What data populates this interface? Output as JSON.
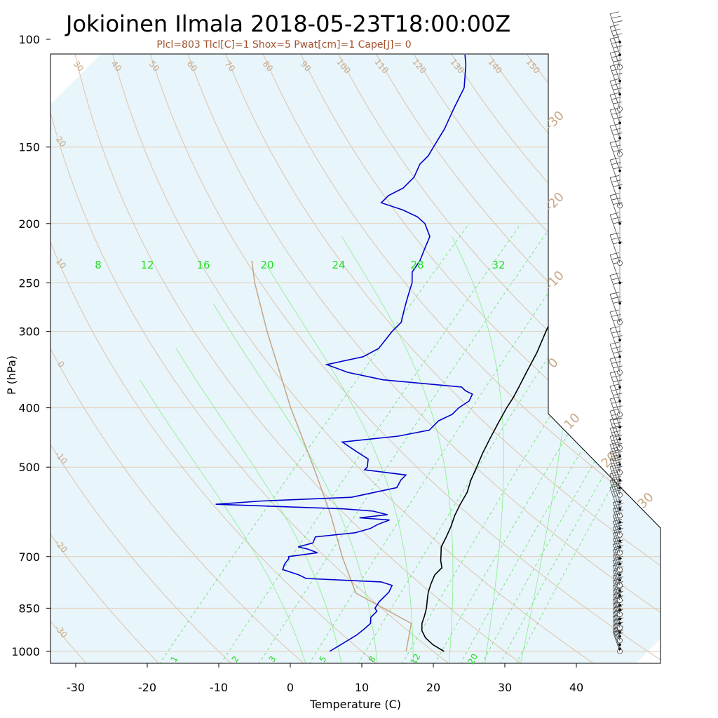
{
  "chart_data": {
    "type": "skew-t",
    "title": "Jokioinen Ilmala 2018-05-23T18:00:00Z",
    "subtitle": "Plcl=803 Tlcl[C]=1 Shox=5 Pwat[cm]=1 Cape[J]= 0",
    "xlabel": "Temperature (C)",
    "ylabel": "P (hPa)",
    "xlim": [
      -33,
      46
    ],
    "ylim": [
      1035,
      100
    ],
    "x_ticks": [
      -30,
      -20,
      -10,
      0,
      10,
      20,
      30,
      40
    ],
    "p_ticks": [
      100,
      150,
      200,
      250,
      300,
      400,
      500,
      700,
      850,
      1000
    ],
    "y_scale": "log",
    "isotherm_labels": [
      -30,
      -20,
      -10,
      0,
      10,
      20,
      30
    ],
    "isotherm_band_celsius": [
      -110,
      -100,
      -90,
      -80,
      -70,
      -60,
      -50,
      -40,
      -30,
      -20,
      -10,
      0,
      10,
      20,
      30,
      40
    ],
    "dry_adiabat_labels": [
      -30,
      -20,
      -10,
      0,
      10,
      20,
      30,
      40,
      50,
      60,
      70,
      80,
      90,
      100,
      110,
      120,
      130,
      140,
      150,
      160
    ],
    "mixing_ratio_top_labels": [
      8,
      12,
      16,
      20,
      24,
      28,
      32
    ],
    "mixing_ratio_bottom_labels": [
      1,
      2,
      3,
      5,
      8,
      12,
      20
    ],
    "temperature": {
      "name": "Temperature",
      "color": "#000000",
      "points": [
        [
          1000,
          21.5
        ],
        [
          990,
          20.5
        ],
        [
          975,
          19.0
        ],
        [
          950,
          17.0
        ],
        [
          925,
          15.5
        ],
        [
          900,
          14.5
        ],
        [
          875,
          13.8
        ],
        [
          850,
          13.0
        ],
        [
          825,
          12.0
        ],
        [
          800,
          11.0
        ],
        [
          775,
          10.2
        ],
        [
          750,
          9.5
        ],
        [
          730,
          9.5
        ],
        [
          710,
          8.3
        ],
        [
          700,
          7.8
        ],
        [
          675,
          6.5
        ],
        [
          650,
          5.8
        ],
        [
          625,
          5.0
        ],
        [
          600,
          4.0
        ],
        [
          575,
          3.2
        ],
        [
          550,
          2.5
        ],
        [
          525,
          1.3
        ],
        [
          500,
          0.3
        ],
        [
          475,
          -0.8
        ],
        [
          450,
          -1.8
        ],
        [
          425,
          -2.8
        ],
        [
          400,
          -3.8
        ],
        [
          385,
          -4.3
        ],
        [
          370,
          -5.0
        ],
        [
          350,
          -6.0
        ],
        [
          325,
          -7.3
        ],
        [
          300,
          -9.0
        ],
        [
          280,
          -10.4
        ],
        [
          260,
          -11.9
        ],
        [
          250,
          -12.6
        ],
        [
          240,
          -13.4
        ],
        [
          230,
          -14.6
        ],
        [
          220,
          -16.2
        ],
        [
          212,
          -17.0
        ],
        [
          205,
          -16.2
        ],
        [
          200,
          -15.5
        ],
        [
          195,
          -15.6
        ],
        [
          190,
          -16.7
        ],
        [
          185,
          -17.0
        ],
        [
          180,
          -17.4
        ],
        [
          175,
          -17.1
        ],
        [
          170,
          -18.0
        ],
        [
          165,
          -18.7
        ],
        [
          160,
          -19.3
        ],
        [
          155,
          -20.0
        ],
        [
          150,
          -21.2
        ],
        [
          145,
          -22.3
        ],
        [
          140,
          -23.1
        ],
        [
          135,
          -24.4
        ],
        [
          130,
          -25.8
        ],
        [
          125,
          -27.3
        ],
        [
          120,
          -29.3
        ],
        [
          115,
          -31.0
        ],
        [
          110,
          -33.5
        ],
        [
          107,
          -35.0
        ]
      ]
    },
    "dewpoint": {
      "name": "Dewpoint",
      "color": "#0000cc",
      "points": [
        [
          1000,
          5.5
        ],
        [
          980,
          6.0
        ],
        [
          960,
          6.5
        ],
        [
          940,
          7.0
        ],
        [
          920,
          7.2
        ],
        [
          900,
          7.3
        ],
        [
          880,
          6.5
        ],
        [
          860,
          6.5
        ],
        [
          850,
          5.8
        ],
        [
          830,
          5.5
        ],
        [
          800,
          5.5
        ],
        [
          780,
          5.0
        ],
        [
          770,
          3.0
        ],
        [
          760,
          -8.0
        ],
        [
          750,
          -9.5
        ],
        [
          735,
          -12.5
        ],
        [
          720,
          -13.0
        ],
        [
          705,
          -13.2
        ],
        [
          700,
          -13.5
        ],
        [
          690,
          -10.0
        ],
        [
          680,
          -12.0
        ],
        [
          675,
          -13.5
        ],
        [
          665,
          -12.0
        ],
        [
          650,
          -12.5
        ],
        [
          640,
          -7.5
        ],
        [
          630,
          -6.0
        ],
        [
          620,
          -5.5
        ],
        [
          610,
          -4.5
        ],
        [
          605,
          -9.0
        ],
        [
          598,
          -5.5
        ],
        [
          590,
          -8.0
        ],
        [
          585,
          -12.5
        ],
        [
          575,
          -31.0
        ],
        [
          568,
          -25.0
        ],
        [
          560,
          -13.0
        ],
        [
          550,
          -10.5
        ],
        [
          540,
          -8.0
        ],
        [
          525,
          -8.5
        ],
        [
          515,
          -8.5
        ],
        [
          505,
          -15.0
        ],
        [
          500,
          -15.0
        ],
        [
          485,
          -16.0
        ],
        [
          470,
          -19.0
        ],
        [
          455,
          -22.0
        ],
        [
          445,
          -15.0
        ],
        [
          435,
          -11.5
        ],
        [
          420,
          -11.5
        ],
        [
          410,
          -10.5
        ],
        [
          400,
          -10.5
        ],
        [
          390,
          -10.0
        ],
        [
          380,
          -10.5
        ],
        [
          375,
          -12.0
        ],
        [
          370,
          -13.0
        ],
        [
          360,
          -25.0
        ],
        [
          350,
          -31.0
        ],
        [
          340,
          -35.0
        ],
        [
          330,
          -31.0
        ],
        [
          320,
          -30.0
        ],
        [
          300,
          -30.5
        ],
        [
          290,
          -30.5
        ],
        [
          280,
          -31.5
        ],
        [
          270,
          -32.5
        ],
        [
          260,
          -33.5
        ],
        [
          250,
          -34.5
        ],
        [
          240,
          -36.0
        ],
        [
          230,
          -36.5
        ],
        [
          220,
          -37.5
        ],
        [
          210,
          -38.5
        ],
        [
          200,
          -41.0
        ],
        [
          195,
          -43.0
        ],
        [
          190,
          -46.0
        ],
        [
          185,
          -50.0
        ],
        [
          180,
          -50.0
        ],
        [
          175,
          -49.0
        ],
        [
          168,
          -49.0
        ],
        [
          160,
          -50.0
        ],
        [
          155,
          -50.0
        ],
        [
          150,
          -50.5
        ],
        [
          140,
          -51.5
        ],
        [
          130,
          -53.0
        ],
        [
          120,
          -54.5
        ],
        [
          110,
          -57.5
        ],
        [
          106,
          -59.0
        ]
      ]
    },
    "parcel": {
      "name": "Parcel",
      "color": "#c4a484",
      "points": [
        [
          1000,
          16.2
        ],
        [
          900,
          13.0
        ],
        [
          803,
          1.0
        ],
        [
          700,
          -6.0
        ],
        [
          600,
          -13.3
        ],
        [
          500,
          -22.5
        ],
        [
          400,
          -34.0
        ],
        [
          300,
          -48.0
        ],
        [
          250,
          -56.5
        ],
        [
          230,
          -60.0
        ]
      ]
    },
    "wind_pressures": [
      1000,
      990,
      975,
      960,
      945,
      930,
      915,
      900,
      885,
      870,
      855,
      840,
      825,
      810,
      795,
      780,
      765,
      750,
      735,
      720,
      705,
      690,
      675,
      660,
      645,
      630,
      615,
      600,
      585,
      570,
      555,
      540,
      525,
      510,
      495,
      480,
      465,
      450,
      430,
      410,
      390,
      370,
      350,
      330,
      310,
      290,
      270,
      250,
      232,
      215,
      200,
      187,
      175,
      164,
      154,
      145,
      137,
      130,
      123,
      117,
      111,
      106,
      101
    ]
  }
}
